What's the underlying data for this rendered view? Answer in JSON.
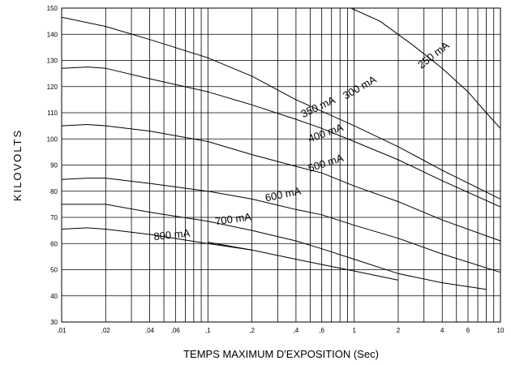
{
  "chart_data": {
    "type": "line",
    "x_scale": "log",
    "xlim": [
      0.01,
      10
    ],
    "ylim": [
      30,
      150
    ],
    "grid": true,
    "xlabel": "TEMPS MAXIMUM D'EXPOSITION (Sec)",
    "ylabel": "KILOVOLTS",
    "x_ticks": [
      {
        "value": 0.01,
        "label": ",01"
      },
      {
        "value": 0.02,
        "label": ",02"
      },
      {
        "value": 0.04,
        "label": ",04"
      },
      {
        "value": 0.06,
        "label": ",06"
      },
      {
        "value": 0.1,
        "label": ",1"
      },
      {
        "value": 0.2,
        "label": ",2"
      },
      {
        "value": 0.4,
        "label": ",4"
      },
      {
        "value": 0.6,
        "label": ",6"
      },
      {
        "value": 1,
        "label": "1"
      },
      {
        "value": 2,
        "label": "2"
      },
      {
        "value": 4,
        "label": "4"
      },
      {
        "value": 6,
        "label": "6"
      },
      {
        "value": 10,
        "label": "10"
      }
    ],
    "x_gridlines": [
      0.01,
      0.02,
      0.03,
      0.04,
      0.05,
      0.06,
      0.07,
      0.08,
      0.09,
      0.1,
      0.2,
      0.3,
      0.4,
      0.5,
      0.6,
      0.7,
      0.8,
      0.9,
      1,
      2,
      3,
      4,
      5,
      6,
      7,
      8,
      9,
      10
    ],
    "y_ticks": [
      {
        "value": 30,
        "label": "30"
      },
      {
        "value": 40,
        "label": "40"
      },
      {
        "value": 50,
        "label": "50"
      },
      {
        "value": 60,
        "label": "60"
      },
      {
        "value": 70,
        "label": "70"
      },
      {
        "value": 80,
        "label": "80"
      },
      {
        "value": 90,
        "label": "90"
      },
      {
        "value": 100,
        "label": "100"
      },
      {
        "value": 110,
        "label": "110"
      },
      {
        "value": 120,
        "label": "120"
      },
      {
        "value": 130,
        "label": "130"
      },
      {
        "value": 140,
        "label": "140"
      },
      {
        "value": 150,
        "label": "150"
      }
    ],
    "series": [
      {
        "name": "250 mA",
        "label_at": [
          3.6,
          131
        ],
        "label_angle": -38,
        "points": [
          [
            0.95,
            150
          ],
          [
            1.5,
            145
          ],
          [
            2.5,
            136
          ],
          [
            4,
            127
          ],
          [
            6,
            118
          ],
          [
            8,
            110
          ],
          [
            10,
            104
          ]
        ]
      },
      {
        "name": "300 mA",
        "label_at": [
          1.12,
          118.5
        ],
        "label_angle": -30,
        "points": [
          [
            0.01,
            146.5
          ],
          [
            0.02,
            143
          ],
          [
            0.04,
            138
          ],
          [
            0.1,
            131
          ],
          [
            0.2,
            124
          ],
          [
            0.4,
            115
          ],
          [
            1,
            105
          ],
          [
            2,
            97
          ],
          [
            4,
            88
          ],
          [
            10,
            77
          ]
        ]
      },
      {
        "name": "350 mA",
        "label_at": [
          0.58,
          111
        ],
        "label_angle": -25,
        "points": [
          [
            0.01,
            127
          ],
          [
            0.015,
            127.5
          ],
          [
            0.02,
            127
          ],
          [
            0.04,
            123
          ],
          [
            0.1,
            118
          ],
          [
            0.2,
            113
          ],
          [
            0.4,
            107.5
          ],
          [
            0.6,
            104
          ],
          [
            1,
            99
          ],
          [
            2,
            92
          ],
          [
            4,
            84
          ],
          [
            10,
            74
          ]
        ]
      },
      {
        "name": "400 mA",
        "label_at": [
          0.65,
          101
        ],
        "label_angle": -20,
        "points": [
          [
            0.01,
            105
          ],
          [
            0.015,
            105.5
          ],
          [
            0.02,
            105
          ],
          [
            0.04,
            103
          ],
          [
            0.1,
            99
          ],
          [
            0.2,
            94
          ],
          [
            0.4,
            89.5
          ],
          [
            0.6,
            87
          ],
          [
            1,
            82
          ],
          [
            2,
            76
          ],
          [
            4,
            69
          ],
          [
            10,
            61
          ]
        ]
      },
      {
        "name": "500 mA",
        "label_at": [
          0.65,
          89.5
        ],
        "label_angle": -18,
        "points": [
          [
            0.01,
            84.5
          ],
          [
            0.015,
            85
          ],
          [
            0.02,
            85
          ],
          [
            0.04,
            83
          ],
          [
            0.1,
            80
          ],
          [
            0.2,
            77
          ],
          [
            0.4,
            73
          ],
          [
            0.6,
            71
          ],
          [
            1,
            67
          ],
          [
            2,
            62
          ],
          [
            4,
            56
          ],
          [
            10,
            49
          ]
        ]
      },
      {
        "name": "600 mA",
        "label_at": [
          0.33,
          77.5
        ],
        "label_angle": -12,
        "points": [
          [
            0.01,
            75
          ],
          [
            0.02,
            75
          ],
          [
            0.04,
            72
          ],
          [
            0.1,
            68.5
          ],
          [
            0.2,
            65
          ],
          [
            0.4,
            61
          ],
          [
            0.6,
            58
          ],
          [
            1,
            54
          ],
          [
            2,
            48.5
          ],
          [
            4,
            45
          ],
          [
            8,
            42.5
          ]
        ]
      },
      {
        "name": "700 mA",
        "label_at": [
          0.15,
          68
        ],
        "label_angle": -8,
        "points": [
          [
            0.01,
            65.5
          ],
          [
            0.015,
            66
          ],
          [
            0.02,
            65.5
          ],
          [
            0.04,
            63.5
          ],
          [
            0.1,
            60
          ],
          [
            0.2,
            57.5
          ],
          [
            0.4,
            54
          ],
          [
            0.6,
            52
          ],
          [
            1,
            49.5
          ],
          [
            2,
            46
          ]
        ]
      },
      {
        "name": "800 mA",
        "label_at": [
          0.057,
          62
        ],
        "label_angle": -6,
        "points": [
          [
            0.1,
            60.5
          ],
          [
            0.2,
            57.5
          ]
        ]
      }
    ]
  }
}
